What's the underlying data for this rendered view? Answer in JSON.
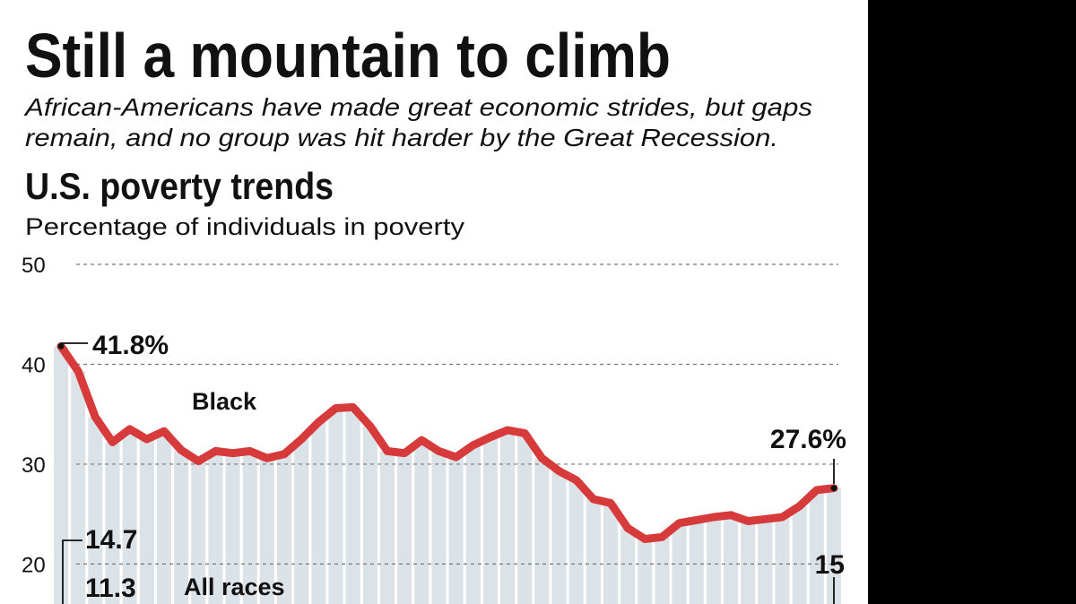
{
  "chart_data": {
    "type": "line",
    "title": "Still a mountain to climb",
    "subtitle": [
      "African-Americans have made great economic strides, but gaps",
      "remain, and no group was hit harder by the Great Recession."
    ],
    "chart_title": "U.S. poverty trends",
    "y_label": "Percentage of individuals in poverty",
    "categories": [
      null,
      null,
      null,
      null,
      null,
      null,
      null,
      null,
      null,
      null,
      null,
      null,
      null,
      null,
      null,
      null,
      null,
      null,
      null,
      null,
      null,
      null,
      null,
      null,
      null,
      null,
      null,
      null,
      null,
      null,
      null,
      null,
      null,
      null,
      null,
      null,
      null,
      null,
      null,
      null,
      null,
      null,
      null,
      null,
      null,
      null
    ],
    "series": [
      {
        "name": "Black",
        "color": "#d63a3a",
        "bar_color": "#dce3e8",
        "values": [
          41.8,
          39.3,
          34.7,
          32.2,
          33.5,
          32.5,
          33.3,
          31.4,
          30.3,
          31.3,
          31.1,
          31.3,
          30.6,
          31.0,
          32.5,
          34.2,
          35.6,
          35.7,
          33.8,
          31.3,
          31.1,
          32.4,
          31.3,
          30.7,
          31.9,
          32.7,
          33.4,
          33.1,
          30.6,
          29.3,
          28.4,
          26.5,
          26.1,
          23.6,
          22.5,
          22.7,
          24.1,
          24.4,
          24.7,
          24.9,
          24.3,
          24.5,
          24.7,
          25.8,
          27.4,
          27.6
        ]
      }
    ],
    "annotations": [
      "41.8%",
      "Black",
      "27.6%",
      "14.7",
      "11.3",
      "All races",
      "15"
    ],
    "ylim": [
      16,
      50
    ],
    "yticks": [
      20,
      30,
      40,
      50
    ],
    "grid": true
  }
}
